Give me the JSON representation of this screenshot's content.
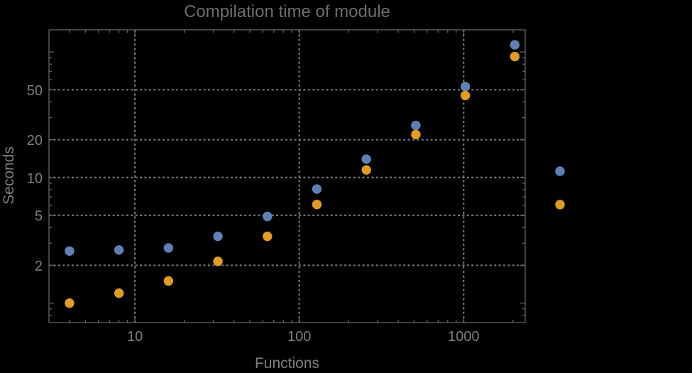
{
  "chart_data": {
    "type": "scatter",
    "title": "Compilation time of module",
    "xlabel": "Functions",
    "ylabel": "Seconds",
    "x_scale": "log",
    "y_scale": "log",
    "xlim": [
      3.0,
      2370
    ],
    "ylim": [
      0.7,
      150
    ],
    "x_tick_labels": [
      "10",
      "100",
      "1000"
    ],
    "y_tick_labels": [
      "2",
      "5",
      "10",
      "20",
      "50"
    ],
    "grid": "dotted",
    "legend_position": "right-center",
    "x": [
      4,
      8,
      16,
      32,
      64,
      128,
      256,
      512,
      1024,
      2048
    ],
    "series": [
      {
        "legend_label": "",
        "color": "#5e81b5",
        "values": [
          2.6,
          2.65,
          2.75,
          3.4,
          4.9,
          8.1,
          14,
          26,
          53,
          114
        ]
      },
      {
        "legend_label": "",
        "color": "#e19c24",
        "values": [
          1.0,
          1.2,
          1.5,
          2.15,
          3.4,
          6.1,
          11.5,
          22,
          45,
          92
        ]
      }
    ],
    "styles": {
      "background": "#000000",
      "title_color": "#6e6e6e",
      "text_color": "#7f7f7f",
      "frame_color": "#646464",
      "grid_color": "#757575"
    }
  }
}
